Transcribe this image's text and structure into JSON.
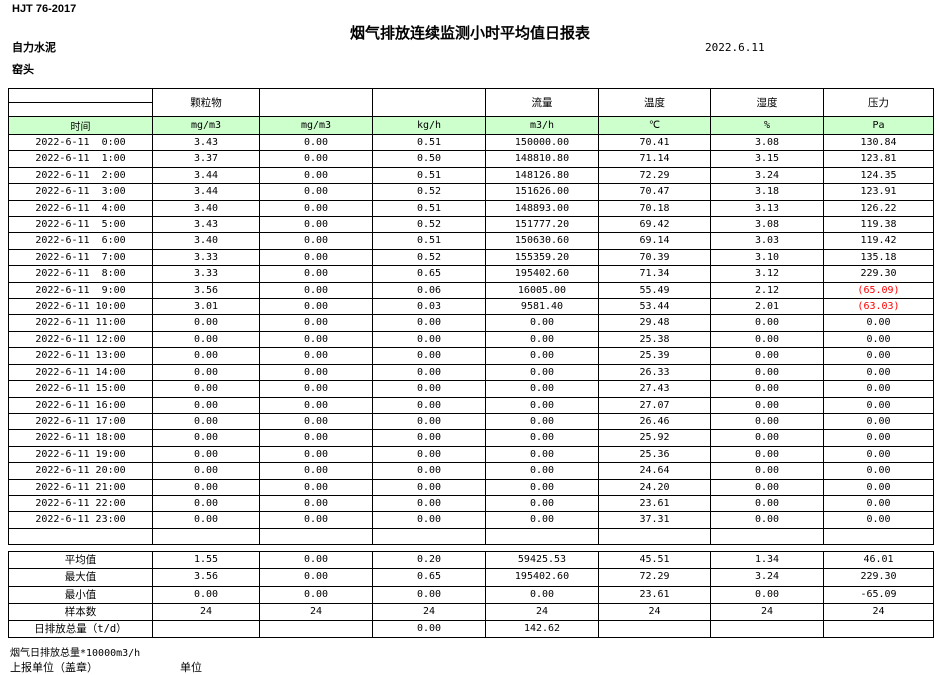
{
  "header": {
    "doc_code": "HJT  76-2017",
    "title": "烟气排放连续监测小时平均值日报表",
    "date": "2022.6.11",
    "company": "自力水泥",
    "station": "窑头"
  },
  "colors": {
    "units_row_fill": "#CCFFCC",
    "negative_value": "#FF0000",
    "border": "#000000"
  },
  "table": {
    "column_groups": [
      "",
      "颗粒物",
      "",
      "",
      "流量",
      "温度",
      "湿度",
      "压力"
    ],
    "units_row": [
      "时间",
      "mg/m3",
      "mg/m3",
      "kg/h",
      "m3/h",
      "℃",
      "%",
      "Pa"
    ],
    "rows": [
      {
        "time": "2022-6-11  0:00",
        "values": [
          "3.43",
          "0.00",
          "0.51",
          "150000.00",
          "70.41",
          "3.08",
          "130.84"
        ]
      },
      {
        "time": "2022-6-11  1:00",
        "values": [
          "3.37",
          "0.00",
          "0.50",
          "148810.80",
          "71.14",
          "3.15",
          "123.81"
        ]
      },
      {
        "time": "2022-6-11  2:00",
        "values": [
          "3.44",
          "0.00",
          "0.51",
          "148126.80",
          "72.29",
          "3.24",
          "124.35"
        ]
      },
      {
        "time": "2022-6-11  3:00",
        "values": [
          "3.44",
          "0.00",
          "0.52",
          "151626.00",
          "70.47",
          "3.18",
          "123.91"
        ]
      },
      {
        "time": "2022-6-11  4:00",
        "values": [
          "3.40",
          "0.00",
          "0.51",
          "148893.00",
          "70.18",
          "3.13",
          "126.22"
        ]
      },
      {
        "time": "2022-6-11  5:00",
        "values": [
          "3.43",
          "0.00",
          "0.52",
          "151777.20",
          "69.42",
          "3.08",
          "119.38"
        ]
      },
      {
        "time": "2022-6-11  6:00",
        "values": [
          "3.40",
          "0.00",
          "0.51",
          "150630.60",
          "69.14",
          "3.03",
          "119.42"
        ]
      },
      {
        "time": "2022-6-11  7:00",
        "values": [
          "3.33",
          "0.00",
          "0.52",
          "155359.20",
          "70.39",
          "3.10",
          "135.18"
        ]
      },
      {
        "time": "2022-6-11  8:00",
        "values": [
          "3.33",
          "0.00",
          "0.65",
          "195402.60",
          "71.34",
          "3.12",
          "229.30"
        ]
      },
      {
        "time": "2022-6-11  9:00",
        "values": [
          "3.56",
          "0.00",
          "0.06",
          "16005.00",
          "55.49",
          "2.12",
          "(65.09)"
        ]
      },
      {
        "time": "2022-6-11 10:00",
        "values": [
          "3.01",
          "0.00",
          "0.03",
          "9581.40",
          "53.44",
          "2.01",
          "(63.03)"
        ]
      },
      {
        "time": "2022-6-11 11:00",
        "values": [
          "0.00",
          "0.00",
          "0.00",
          "0.00",
          "29.48",
          "0.00",
          "0.00"
        ]
      },
      {
        "time": "2022-6-11 12:00",
        "values": [
          "0.00",
          "0.00",
          "0.00",
          "0.00",
          "25.38",
          "0.00",
          "0.00"
        ]
      },
      {
        "time": "2022-6-11 13:00",
        "values": [
          "0.00",
          "0.00",
          "0.00",
          "0.00",
          "25.39",
          "0.00",
          "0.00"
        ]
      },
      {
        "time": "2022-6-11 14:00",
        "values": [
          "0.00",
          "0.00",
          "0.00",
          "0.00",
          "26.33",
          "0.00",
          "0.00"
        ]
      },
      {
        "time": "2022-6-11 15:00",
        "values": [
          "0.00",
          "0.00",
          "0.00",
          "0.00",
          "27.43",
          "0.00",
          "0.00"
        ]
      },
      {
        "time": "2022-6-11 16:00",
        "values": [
          "0.00",
          "0.00",
          "0.00",
          "0.00",
          "27.07",
          "0.00",
          "0.00"
        ]
      },
      {
        "time": "2022-6-11 17:00",
        "values": [
          "0.00",
          "0.00",
          "0.00",
          "0.00",
          "26.46",
          "0.00",
          "0.00"
        ]
      },
      {
        "time": "2022-6-11 18:00",
        "values": [
          "0.00",
          "0.00",
          "0.00",
          "0.00",
          "25.92",
          "0.00",
          "0.00"
        ]
      },
      {
        "time": "2022-6-11 19:00",
        "values": [
          "0.00",
          "0.00",
          "0.00",
          "0.00",
          "25.36",
          "0.00",
          "0.00"
        ]
      },
      {
        "time": "2022-6-11 20:00",
        "values": [
          "0.00",
          "0.00",
          "0.00",
          "0.00",
          "24.64",
          "0.00",
          "0.00"
        ]
      },
      {
        "time": "2022-6-11 21:00",
        "values": [
          "0.00",
          "0.00",
          "0.00",
          "0.00",
          "24.20",
          "0.00",
          "0.00"
        ]
      },
      {
        "time": "2022-6-11 22:00",
        "values": [
          "0.00",
          "0.00",
          "0.00",
          "0.00",
          "23.61",
          "0.00",
          "0.00"
        ]
      },
      {
        "time": "2022-6-11 23:00",
        "values": [
          "0.00",
          "0.00",
          "0.00",
          "0.00",
          "37.31",
          "0.00",
          "0.00"
        ]
      }
    ],
    "summary": [
      {
        "label": "平均值",
        "values": [
          "1.55",
          "0.00",
          "0.20",
          "59425.53",
          "45.51",
          "1.34",
          "46.01"
        ]
      },
      {
        "label": "最大值",
        "values": [
          "3.56",
          "0.00",
          "0.65",
          "195402.60",
          "72.29",
          "3.24",
          "229.30"
        ]
      },
      {
        "label": "最小值",
        "values": [
          "0.00",
          "0.00",
          "0.00",
          "0.00",
          "23.61",
          "0.00",
          "-65.09"
        ]
      },
      {
        "label": "样本数",
        "values": [
          "24",
          "24",
          "24",
          "24",
          "24",
          "24",
          "24"
        ]
      },
      {
        "label": "日排放总量（t/d）",
        "values": [
          "",
          "",
          "0.00",
          "142.62",
          "",
          "",
          ""
        ]
      }
    ]
  },
  "footer": {
    "note": "烟气日排放总量*10000m3/h",
    "report_unit_label": "上报单位（盖章）",
    "unit_label": "单位"
  }
}
